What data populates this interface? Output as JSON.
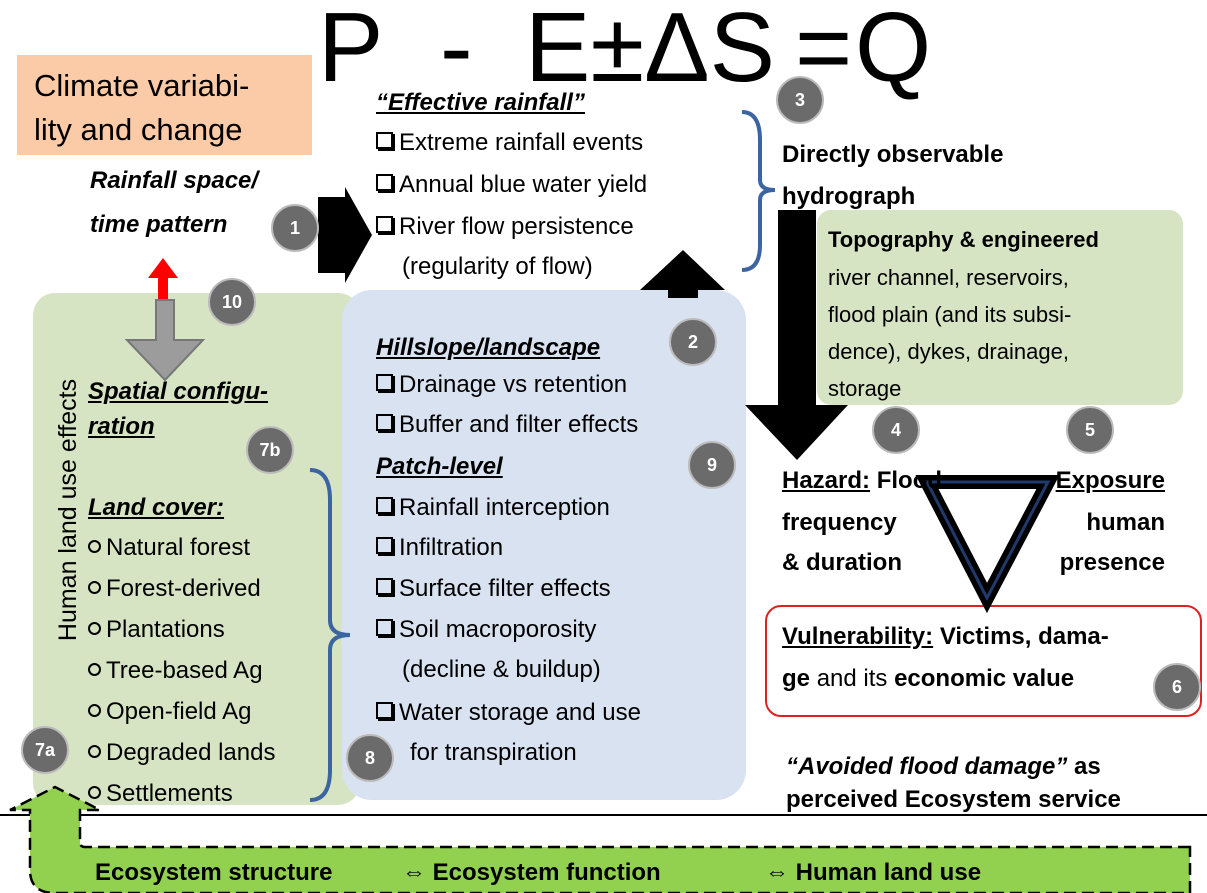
{
  "equation": {
    "parts": [
      "P",
      "-",
      "E±ΔS",
      "=",
      "Q"
    ]
  },
  "climate_box": {
    "lines": [
      "Climate variabi-",
      "lity and change"
    ]
  },
  "rainfall_pattern": {
    "lines": [
      "Rainfall space/",
      "time pattern"
    ]
  },
  "effective_rainfall": {
    "heading": "“Effective rainfall”",
    "items": [
      [
        "Extreme rainfall events"
      ],
      [
        "Annual blue water yield"
      ],
      [
        "River flow persistence",
        "(regularity of flow)"
      ]
    ]
  },
  "hydrograph": {
    "lines": [
      "Directly observable",
      "hydrograph"
    ]
  },
  "topography": {
    "heading": "Topography & engineered",
    "lines": [
      "river channel, reservoirs,",
      "flood plain (and its subsi-",
      "dence), dykes, drainage,",
      "storage"
    ]
  },
  "landscape": {
    "heading": "Hillslope/landscape",
    "items": [
      "Drainage vs retention",
      "Buffer and filter effects"
    ]
  },
  "patch": {
    "heading": "Patch-level",
    "items": [
      [
        "Rainfall interception"
      ],
      [
        "Infiltration"
      ],
      [
        "Surface filter effects"
      ],
      [
        "Soil macroporosity",
        "(decline & buildup)"
      ],
      [
        "Water storage and use",
        "for transpiration"
      ]
    ]
  },
  "land_use": {
    "side_label": "Human land use effects",
    "spatial": [
      "Spatial configu-",
      "ration"
    ],
    "land_cover_heading": "Land cover:",
    "land_cover": [
      "Natural forest",
      "Forest-derived",
      "Plantations",
      "Tree-based Ag",
      "Open-field Ag",
      "Degraded lands",
      "Settlements"
    ]
  },
  "hazard": {
    "label": "Hazard:",
    "text": "Flood",
    "lines": [
      "frequency",
      "& duration"
    ]
  },
  "exposure": {
    "label": "Exposure",
    "lines": [
      "human",
      "presence"
    ]
  },
  "vulnerability": {
    "label": "Vulnerability:",
    "line1": "Victims, dama-",
    "ge": "ge",
    "mid": "and its",
    "end": "economic value"
  },
  "service": {
    "quote": "“Avoided flood damage”",
    "rest": "as",
    "line2": "perceived Ecosystem service"
  },
  "loop": [
    "Ecosystem structure",
    "⇔ Ecosystem function",
    "⇔ Human land use"
  ],
  "markers": [
    "1",
    "2",
    "3",
    "4",
    "5",
    "6",
    "7a",
    "7b",
    "8",
    "9",
    "10"
  ]
}
